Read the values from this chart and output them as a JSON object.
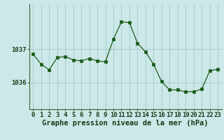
{
  "x": [
    0,
    1,
    2,
    3,
    4,
    5,
    6,
    7,
    8,
    9,
    10,
    11,
    12,
    13,
    14,
    15,
    16,
    17,
    18,
    19,
    20,
    21,
    22,
    23
  ],
  "y": [
    1036.85,
    1036.55,
    1036.38,
    1036.75,
    1036.78,
    1036.68,
    1036.65,
    1036.72,
    1036.65,
    1036.62,
    1037.3,
    1037.82,
    1037.8,
    1037.18,
    1036.92,
    1036.55,
    1036.03,
    1035.78,
    1035.78,
    1035.72,
    1035.73,
    1035.8,
    1036.35,
    1036.4
  ],
  "bg_color": "#cce8e8",
  "plot_bg_color": "#cce8e8",
  "line_color": "#1a5c1a",
  "marker_color": "#1a5c1a",
  "grid_color": "#a8cece",
  "ytick_labels": [
    "1036",
    "1037"
  ],
  "ytick_values": [
    1036,
    1037
  ],
  "xlabel": "Graphe pression niveau de la mer (hPa)",
  "xlabel_fontsize": 7.5,
  "tick_fontsize": 6.5,
  "ylim_min": 1035.2,
  "ylim_max": 1038.35,
  "xlim_min": -0.5,
  "xlim_max": 23.5
}
